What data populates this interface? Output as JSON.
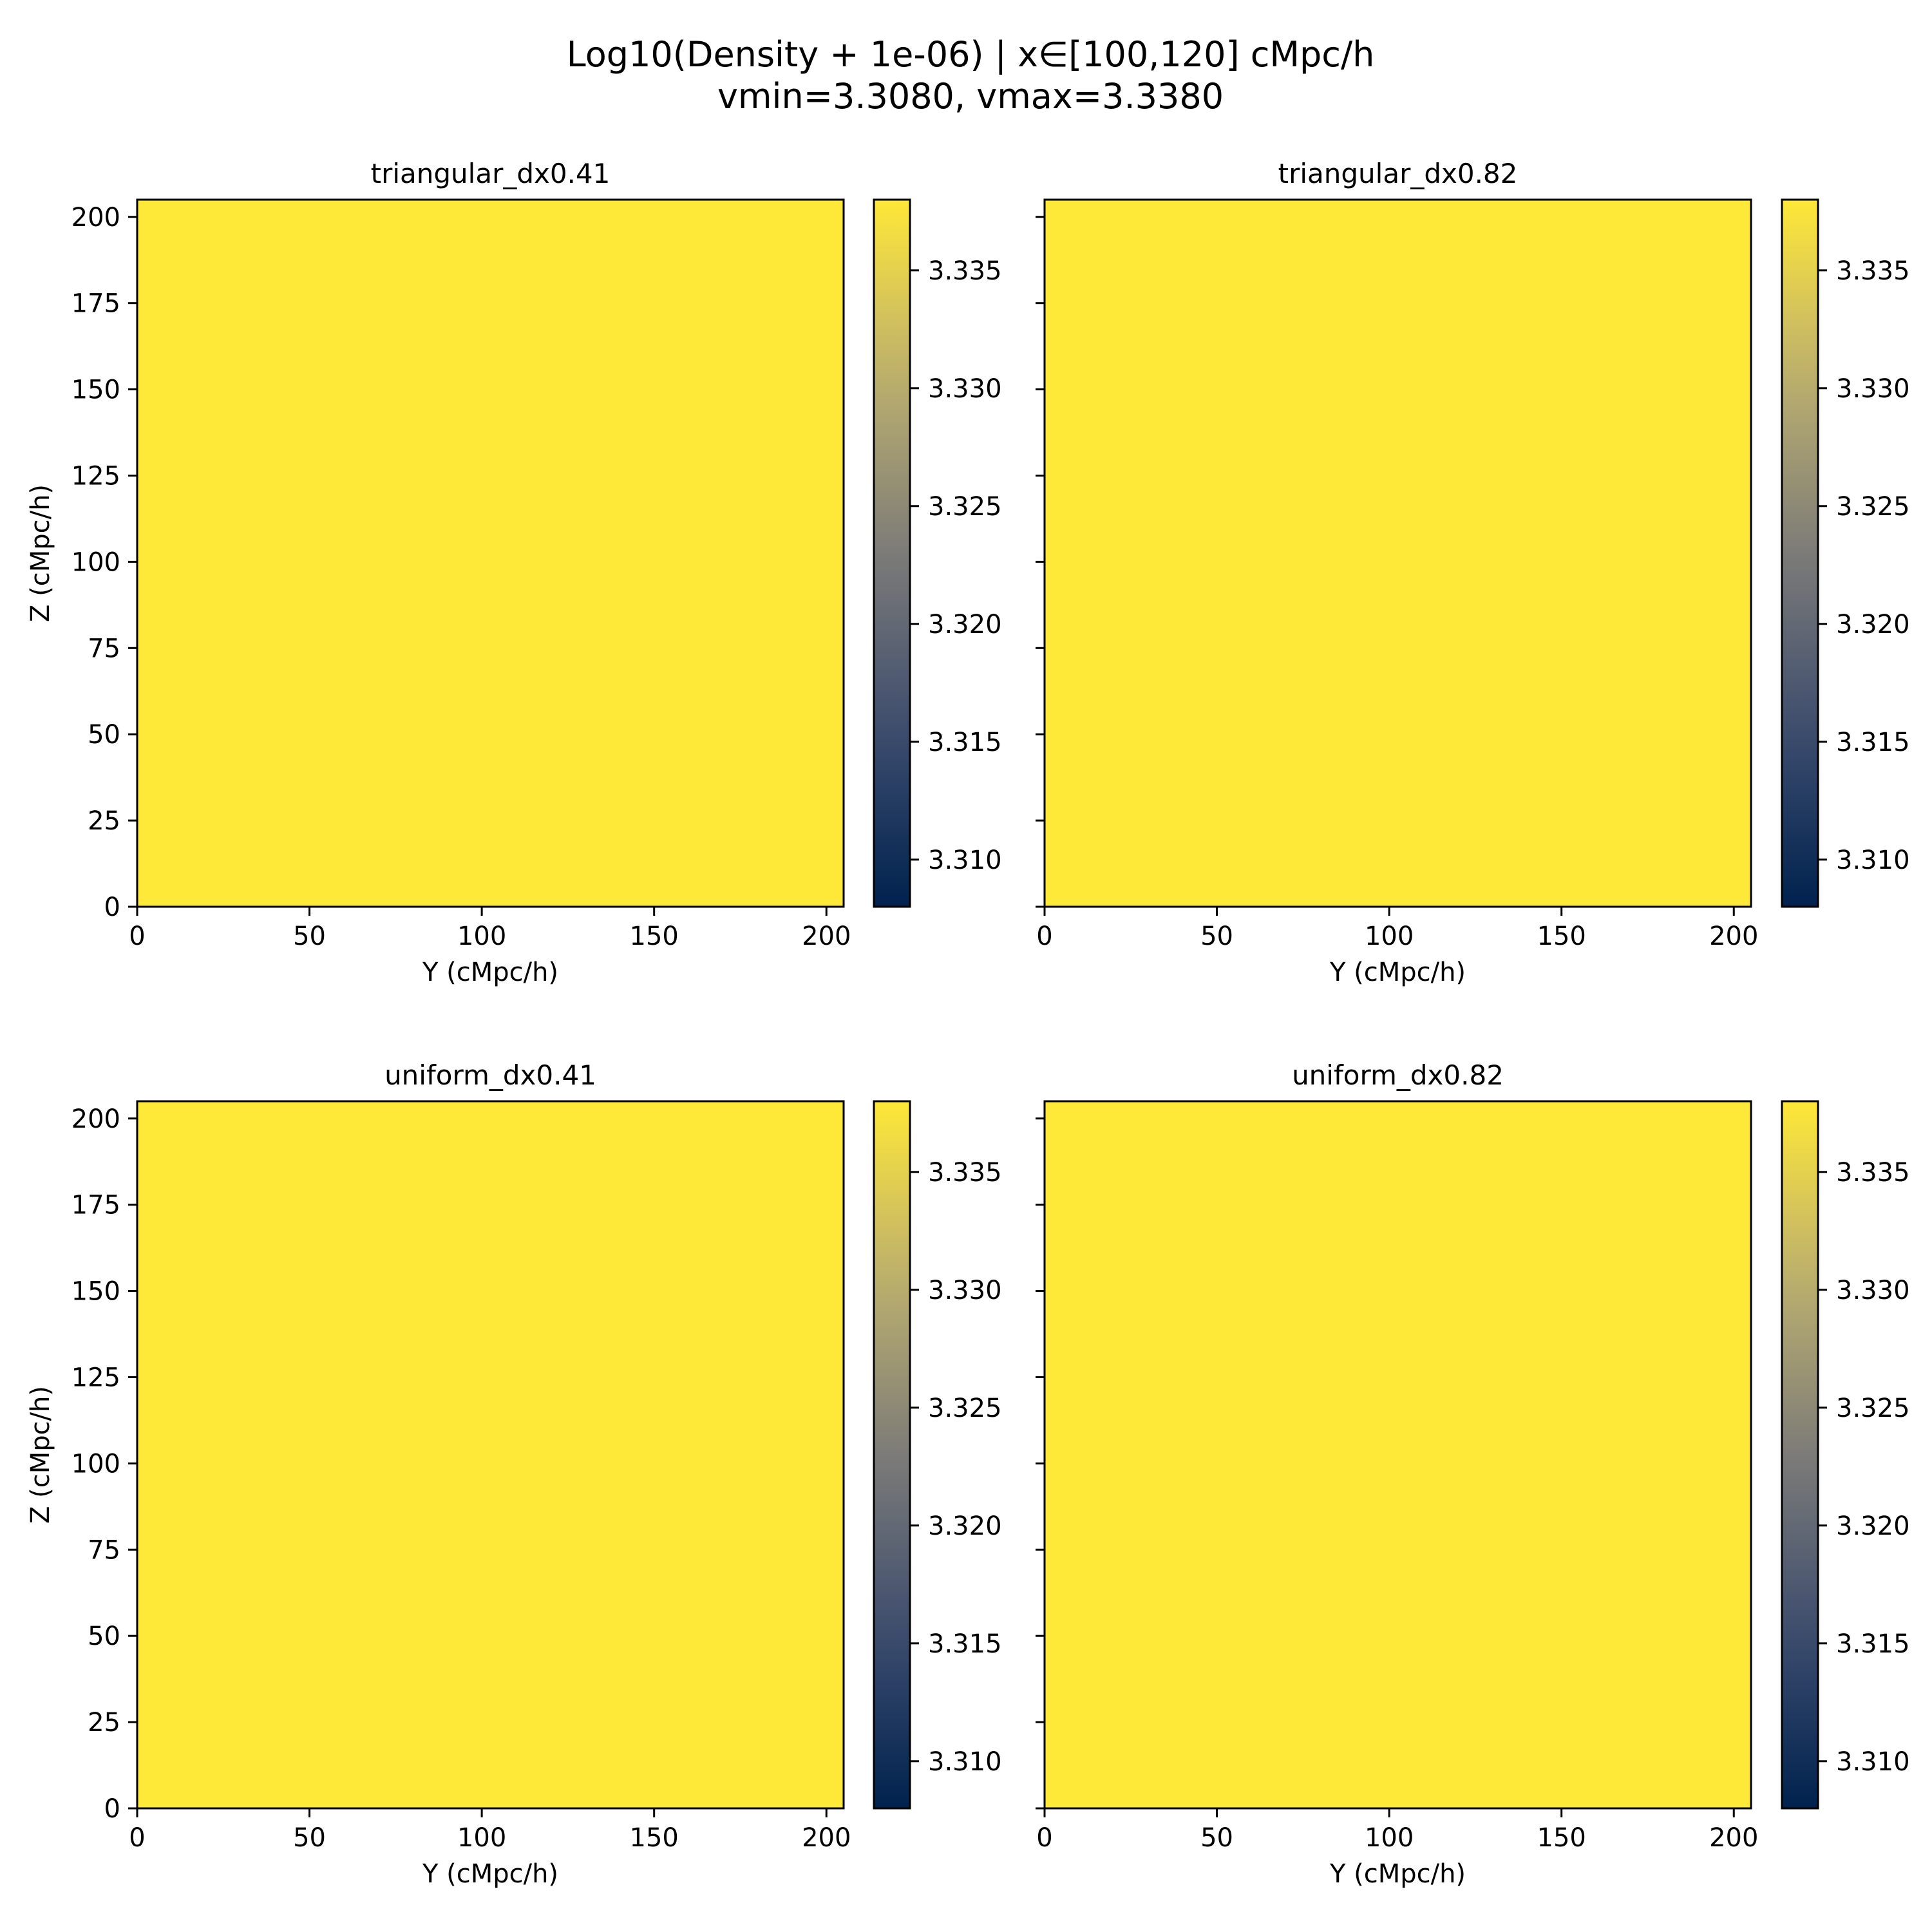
{
  "figure": {
    "title_line1": "Log10(Density + 1e-06) | x∈[100,120] cMpc/h",
    "title_line2": "vmin=3.3080, vmax=3.3380"
  },
  "chart_data": [
    {
      "type": "heatmap",
      "title": "triangular_dx0.41",
      "xlabel": "Y (cMpc/h)",
      "ylabel": "Z (cMpc/h)",
      "xlim": [
        0,
        205
      ],
      "ylim": [
        0,
        205
      ],
      "xticks": [
        "0",
        "50",
        "100",
        "150",
        "200"
      ],
      "yticks": [
        "0",
        "25",
        "50",
        "75",
        "100",
        "125",
        "150",
        "175",
        "200"
      ],
      "yticklabels_visible": true,
      "value": 3.338,
      "colorbar": {
        "vmin": 3.308,
        "vmax": 3.338,
        "ticks": [
          "3.310",
          "3.315",
          "3.320",
          "3.325",
          "3.330",
          "3.335"
        ],
        "colormap": "cividis"
      }
    },
    {
      "type": "heatmap",
      "title": "triangular_dx0.82",
      "xlabel": "Y (cMpc/h)",
      "ylabel": "",
      "xlim": [
        0,
        205
      ],
      "ylim": [
        0,
        205
      ],
      "xticks": [
        "0",
        "50",
        "100",
        "150",
        "200"
      ],
      "yticks": [
        "0",
        "25",
        "50",
        "75",
        "100",
        "125",
        "150",
        "175",
        "200"
      ],
      "yticklabels_visible": false,
      "value": 3.338,
      "colorbar": {
        "vmin": 3.308,
        "vmax": 3.338,
        "ticks": [
          "3.310",
          "3.315",
          "3.320",
          "3.325",
          "3.330",
          "3.335"
        ],
        "colormap": "cividis"
      }
    },
    {
      "type": "heatmap",
      "title": "uniform_dx0.41",
      "xlabel": "Y (cMpc/h)",
      "ylabel": "Z (cMpc/h)",
      "xlim": [
        0,
        205
      ],
      "ylim": [
        0,
        205
      ],
      "xticks": [
        "0",
        "50",
        "100",
        "150",
        "200"
      ],
      "yticks": [
        "0",
        "25",
        "50",
        "75",
        "100",
        "125",
        "150",
        "175",
        "200"
      ],
      "yticklabels_visible": true,
      "value": 3.338,
      "colorbar": {
        "vmin": 3.308,
        "vmax": 3.338,
        "ticks": [
          "3.310",
          "3.315",
          "3.320",
          "3.325",
          "3.330",
          "3.335"
        ],
        "colormap": "cividis"
      }
    },
    {
      "type": "heatmap",
      "title": "uniform_dx0.82",
      "xlabel": "Y (cMpc/h)",
      "ylabel": "",
      "xlim": [
        0,
        205
      ],
      "ylim": [
        0,
        205
      ],
      "xticks": [
        "0",
        "50",
        "100",
        "150",
        "200"
      ],
      "yticks": [
        "0",
        "25",
        "50",
        "75",
        "100",
        "125",
        "150",
        "175",
        "200"
      ],
      "yticklabels_visible": false,
      "value": 3.338,
      "colorbar": {
        "vmin": 3.308,
        "vmax": 3.338,
        "ticks": [
          "3.310",
          "3.315",
          "3.320",
          "3.325",
          "3.330",
          "3.335"
        ],
        "colormap": "cividis"
      }
    }
  ],
  "colors": {
    "cividis_low": "#00224e",
    "cividis_mid": "#7c7b78",
    "cividis_high": "#fee838"
  }
}
